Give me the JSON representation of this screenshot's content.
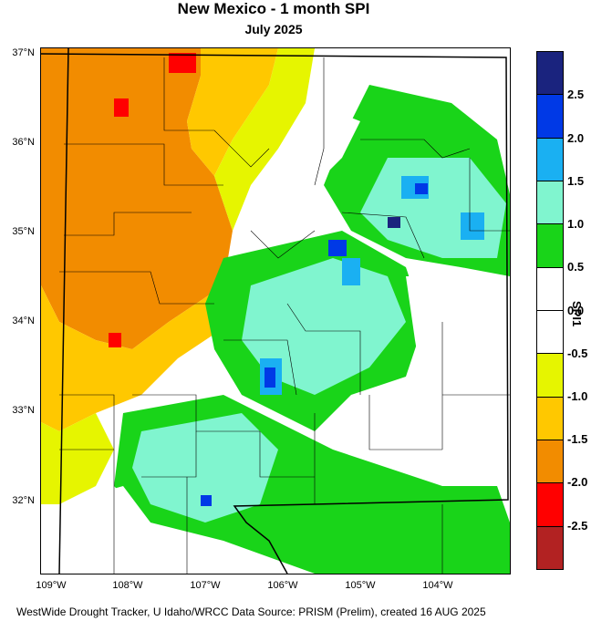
{
  "title": "New Mexico - 1 month SPI",
  "subtitle": "July 2025",
  "footer": "WestWide Drought Tracker, U Idaho/WRCC Data Source: PRISM (Prelim), created 16 AUG 2025",
  "lat_labels": [
    "37°N",
    "36°N",
    "35°N",
    "34°N",
    "33°N",
    "32°N"
  ],
  "lon_labels": [
    "109°W",
    "108°W",
    "107°W",
    "106°W",
    "105°W",
    "104°W"
  ],
  "legend": {
    "title": "SPI1",
    "ticks": [
      "2.5",
      "2.0",
      "1.5",
      "1.0",
      "0.5",
      "0.0",
      "-0.5",
      "-1.0",
      "-1.5",
      "-2.0",
      "-2.5"
    ],
    "colors": [
      "#1a237e",
      "#0039e6",
      "#1ab0f2",
      "#80f5cf",
      "#19d419",
      "#ffffff",
      "#ffffff",
      "#e6f500",
      "#ffc800",
      "#f28c00",
      "#ff0000",
      "#b22222"
    ]
  },
  "colors": {
    "extreme_dry": "#b22222",
    "very_dry": "#ff0000",
    "dry": "#f28c00",
    "mod_dry": "#ffc800",
    "slightly_dry": "#e6f500",
    "normal": "#ffffff",
    "slightly_wet": "#19d419",
    "mod_wet": "#80f5cf",
    "wet": "#1ab0f2",
    "very_wet": "#0039e6",
    "extreme_wet": "#1a237e"
  }
}
